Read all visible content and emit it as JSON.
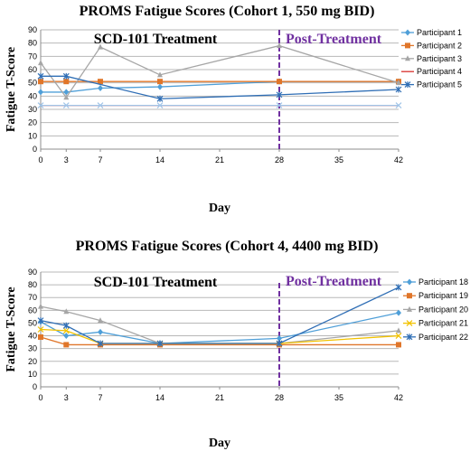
{
  "chart_data": [
    {
      "type": "line",
      "title": "PROMS Fatigue Scores (Cohort 1, 550 mg BID)",
      "xlabel": "Day",
      "ylabel": "Fatigue T-Score",
      "xlim": [
        0,
        42
      ],
      "ylim": [
        0,
        90
      ],
      "xticks": [
        0,
        3,
        7,
        14,
        21,
        28,
        35,
        42
      ],
      "yticks": [
        0,
        10,
        20,
        30,
        40,
        50,
        60,
        70,
        80,
        90
      ],
      "grid": "horizontal",
      "legend": "right",
      "annotations": [
        "SCD-101 Treatment",
        "Post-Treatment"
      ],
      "divider_x": 28,
      "series": [
        {
          "name": "Participant 1",
          "color": "#4f9fd8",
          "marker": "diamond",
          "x": [
            0,
            3,
            7,
            14,
            28,
            42
          ],
          "y": [
            43,
            43,
            46,
            47,
            51,
            51
          ]
        },
        {
          "name": "Participant 2",
          "color": "#e0762a",
          "marker": "square",
          "x": [
            0,
            3,
            7,
            14,
            28,
            42
          ],
          "y": [
            51,
            51,
            51,
            51,
            51,
            51
          ]
        },
        {
          "name": "Participant 3",
          "color": "#a6a6a6",
          "marker": "triangle",
          "x": [
            0,
            3,
            7,
            14,
            28,
            42
          ],
          "y": [
            65,
            39,
            77,
            56,
            78,
            50
          ]
        },
        {
          "name": "Participant 4",
          "color": "#d9302c",
          "marker": "none",
          "x": [
            0,
            3,
            7,
            14,
            28,
            42
          ],
          "y": [
            33,
            33,
            33,
            33,
            33,
            33
          ]
        },
        {
          "name": "Participant 5",
          "color": "#2f6eb5",
          "marker": "asterisk",
          "x": [
            0,
            3,
            14,
            28,
            42
          ],
          "y": [
            55,
            55,
            38,
            41,
            45
          ]
        },
        {
          "name": "",
          "color": "#a0c4e8",
          "marker": "x",
          "x": [
            0,
            3,
            7,
            14,
            28,
            42
          ],
          "y": [
            33,
            33,
            33,
            33,
            33,
            33
          ]
        }
      ]
    },
    {
      "type": "line",
      "title": "PROMS Fatigue Scores (Cohort 4, 4400 mg BID)",
      "xlabel": "Day",
      "ylabel": "Fatigue T-Score",
      "xlim": [
        0,
        42
      ],
      "ylim": [
        0,
        90
      ],
      "xticks": [
        0,
        3,
        7,
        14,
        21,
        28,
        35,
        42
      ],
      "yticks": [
        0,
        10,
        20,
        30,
        40,
        50,
        60,
        70,
        80,
        90
      ],
      "grid": "horizontal",
      "legend": "right",
      "annotations": [
        "SCD-101 Treatment",
        "Post-Treatment"
      ],
      "divider_x": 28,
      "series": [
        {
          "name": "Participant 18",
          "color": "#4f9fd8",
          "marker": "diamond",
          "x": [
            0,
            3,
            7,
            14,
            28,
            42
          ],
          "y": [
            51,
            40,
            43,
            34,
            38,
            58
          ]
        },
        {
          "name": "Participant 19",
          "color": "#e0762a",
          "marker": "square",
          "x": [
            0,
            3,
            7,
            14,
            28,
            42
          ],
          "y": [
            39,
            33,
            33,
            33,
            33,
            33
          ]
        },
        {
          "name": "Participant 20",
          "color": "#a6a6a6",
          "marker": "triangle",
          "x": [
            0,
            3,
            7,
            14,
            28,
            42
          ],
          "y": [
            63,
            59,
            52,
            34,
            34,
            44
          ]
        },
        {
          "name": "Participant 21",
          "color": "#f2c200",
          "marker": "x",
          "x": [
            0,
            3,
            7,
            14,
            28,
            42
          ],
          "y": [
            45,
            44,
            34,
            34,
            34,
            40
          ]
        },
        {
          "name": "Participant 22",
          "color": "#2f6eb5",
          "marker": "asterisk",
          "x": [
            0,
            3,
            7,
            14,
            28,
            42
          ],
          "y": [
            52,
            48,
            34,
            34,
            34,
            78
          ]
        }
      ]
    }
  ]
}
